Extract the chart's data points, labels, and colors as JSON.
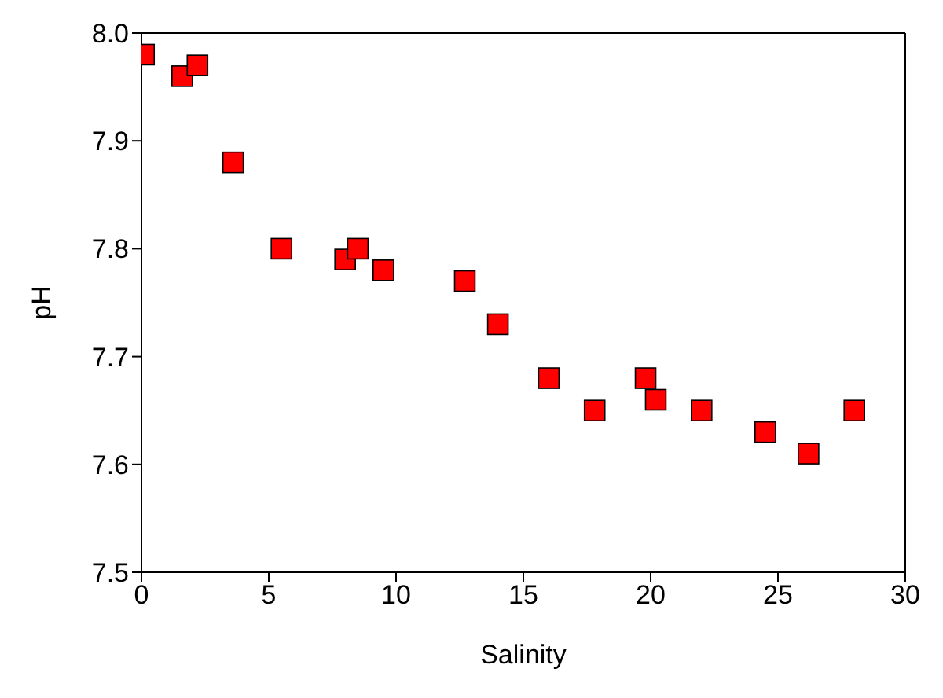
{
  "chart_data": {
    "type": "scatter",
    "xlabel": "Salinity",
    "ylabel": "pH",
    "x": [
      0.1,
      1.6,
      2.2,
      3.6,
      5.5,
      8.0,
      8.5,
      9.5,
      12.7,
      14.0,
      16.0,
      17.8,
      19.8,
      20.2,
      22.0,
      24.5,
      26.2,
      28.0
    ],
    "series": [
      {
        "color": "#ff0000",
        "values": [
          7.98,
          7.96,
          7.97,
          7.88,
          7.8,
          7.79,
          7.8,
          7.78,
          7.77,
          7.73,
          7.68,
          7.65,
          7.68,
          7.66,
          7.65,
          7.63,
          7.61,
          7.65
        ]
      }
    ],
    "xlim": [
      0,
      30
    ],
    "xticks": [
      0,
      5,
      10,
      15,
      20,
      25,
      30
    ],
    "ylim": [
      7.5,
      8.0
    ],
    "yticks": [
      {
        "value": 7.5,
        "label": "7.5"
      },
      {
        "value": 7.6,
        "label": "7.6"
      },
      {
        "value": 7.7,
        "label": "7.7"
      },
      {
        "value": 7.8,
        "label": "7.8"
      },
      {
        "value": 7.9,
        "label": "7.9"
      },
      {
        "value": 8.0,
        "label": "8.0"
      }
    ],
    "marker": "square",
    "legend": false
  }
}
